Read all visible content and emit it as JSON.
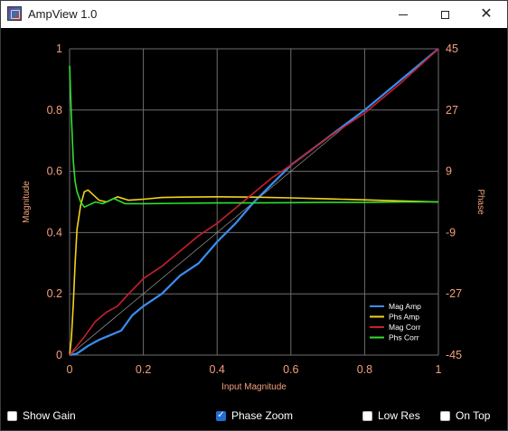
{
  "window": {
    "title": "AmpView 1.0",
    "icon": "app-icon",
    "controls": [
      "minimize-icon",
      "maximize-icon",
      "close-icon"
    ]
  },
  "checkboxes": [
    {
      "label": "Show Gain",
      "checked": false
    },
    {
      "label": "Phase Zoom",
      "checked": true
    },
    {
      "label": "Low Res",
      "checked": false
    },
    {
      "label": "On Top",
      "checked": false
    }
  ],
  "colors": {
    "background": "#000000",
    "grid": "#6e6e6e",
    "tick_text": "#f2a07b",
    "mag_amp": "#3a8ef0",
    "phs_amp": "#f5d21a",
    "mag_corr": "#c81f2b",
    "phs_corr": "#2fe02f",
    "reference": "#9a9a9a"
  },
  "chart_data": {
    "type": "line",
    "xlabel": "Input Magnitude",
    "ylabel": "Magnitude",
    "y2label": "Phase",
    "xlim": [
      0,
      1
    ],
    "ylim": [
      0,
      1
    ],
    "y2lim": [
      -45,
      45
    ],
    "x_ticks": [
      "0",
      "0.2",
      "0.4",
      "0.6",
      "0.8",
      "1"
    ],
    "y_ticks": [
      "0",
      "0.2",
      "0.4",
      "0.6",
      "0.8",
      "1"
    ],
    "y2_ticks": [
      "-45",
      "-27",
      "-9",
      "9",
      "27",
      "45"
    ],
    "grid": true,
    "legend": "bottom-right",
    "series": [
      {
        "name": "Mag Amp",
        "axis": "left",
        "x": [
          0,
          0.02,
          0.05,
          0.08,
          0.1,
          0.14,
          0.17,
          0.2,
          0.25,
          0.3,
          0.35,
          0.4,
          0.45,
          0.5,
          0.55,
          0.6,
          0.7,
          0.8,
          0.9,
          1.0
        ],
        "y": [
          0,
          0.005,
          0.03,
          0.05,
          0.06,
          0.08,
          0.13,
          0.16,
          0.2,
          0.26,
          0.3,
          0.37,
          0.43,
          0.5,
          0.56,
          0.62,
          0.71,
          0.8,
          0.9,
          1.0
        ]
      },
      {
        "name": "Phs Amp",
        "axis": "right",
        "x": [
          0,
          0.005,
          0.01,
          0.015,
          0.02,
          0.03,
          0.04,
          0.05,
          0.06,
          0.08,
          0.1,
          0.13,
          0.16,
          0.2,
          0.25,
          0.3,
          0.4,
          0.5,
          0.6,
          0.7,
          0.8,
          0.9,
          1.0
        ],
        "y": [
          -45,
          -40,
          -30,
          -18,
          -8,
          -1,
          3,
          3.5,
          2.5,
          0.5,
          0,
          1.5,
          0.5,
          0.8,
          1.3,
          1.4,
          1.5,
          1.4,
          1.2,
          0.9,
          0.6,
          0.3,
          0
        ]
      },
      {
        "name": "Mag Corr",
        "axis": "left",
        "x": [
          0,
          0.02,
          0.04,
          0.07,
          0.1,
          0.13,
          0.16,
          0.2,
          0.25,
          0.3,
          0.35,
          0.4,
          0.45,
          0.5,
          0.55,
          0.6,
          0.7,
          0.8,
          0.9,
          1.0
        ],
        "y": [
          0,
          0.03,
          0.06,
          0.11,
          0.14,
          0.16,
          0.2,
          0.25,
          0.29,
          0.34,
          0.39,
          0.43,
          0.48,
          0.53,
          0.58,
          0.62,
          0.71,
          0.79,
          0.89,
          1.0
        ]
      },
      {
        "name": "Phs Corr",
        "axis": "right",
        "x": [
          0,
          0.005,
          0.01,
          0.015,
          0.02,
          0.03,
          0.04,
          0.05,
          0.07,
          0.09,
          0.12,
          0.15,
          0.2,
          0.3,
          0.4,
          0.5,
          0.6,
          0.7,
          0.8,
          0.9,
          1.0
        ],
        "y": [
          40,
          25,
          12,
          6,
          3,
          0,
          -1.5,
          -1,
          0,
          -0.5,
          1,
          -0.5,
          -0.5,
          -0.4,
          -0.3,
          -0.3,
          -0.2,
          -0.1,
          -0.1,
          0,
          0
        ]
      }
    ]
  }
}
